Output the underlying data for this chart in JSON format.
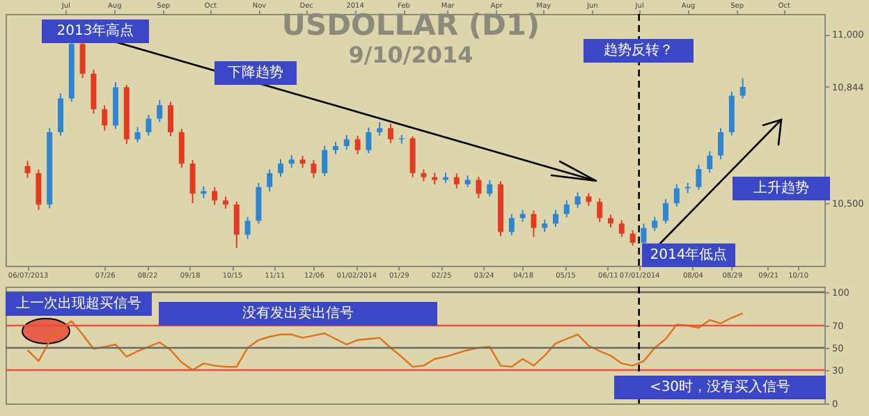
{
  "chart_data": [
    {
      "type": "candlestick",
      "title": "USDOLLAR (D1)",
      "subtitle": "9/10/2014",
      "x": [
        "2013-06-07",
        "2013-06-14",
        "2013-06-21",
        "2013-06-28",
        "2013-07-05",
        "2013-07-12",
        "2013-07-19",
        "2013-07-26",
        "2013-08-02",
        "2013-08-09",
        "2013-08-16",
        "2013-08-23",
        "2013-08-30",
        "2013-09-06",
        "2013-09-13",
        "2013-09-20",
        "2013-09-27",
        "2013-10-04",
        "2013-10-11",
        "2013-10-18",
        "2013-10-25",
        "2013-11-01",
        "2013-11-08",
        "2013-11-15",
        "2013-11-22",
        "2013-11-29",
        "2013-12-06",
        "2013-12-13",
        "2013-12-20",
        "2013-12-27",
        "2014-01-03",
        "2014-01-10",
        "2014-01-17",
        "2014-01-24",
        "2014-01-31",
        "2014-02-07",
        "2014-02-14",
        "2014-02-21",
        "2014-02-28",
        "2014-03-07",
        "2014-03-14",
        "2014-03-21",
        "2014-03-28",
        "2014-04-04",
        "2014-04-11",
        "2014-04-18",
        "2014-04-25",
        "2014-05-02",
        "2014-05-09",
        "2014-05-16",
        "2014-05-23",
        "2014-05-30",
        "2014-06-06",
        "2014-06-13",
        "2014-06-20",
        "2014-06-27",
        "2014-07-04",
        "2014-07-11",
        "2014-07-18",
        "2014-07-25",
        "2014-08-01",
        "2014-08-08",
        "2014-08-15",
        "2014-08-22",
        "2014-08-29",
        "2014-09-05"
      ],
      "ohlc": [
        [
          10610,
          10625,
          10575,
          10589
        ],
        [
          10589,
          10600,
          10480,
          10496
        ],
        [
          10496,
          10722,
          10485,
          10710
        ],
        [
          10710,
          10825,
          10700,
          10810
        ],
        [
          10810,
          10984,
          10800,
          10971
        ],
        [
          10971,
          10980,
          10870,
          10883
        ],
        [
          10883,
          10895,
          10765,
          10778
        ],
        [
          10778,
          10790,
          10715,
          10730
        ],
        [
          10730,
          10858,
          10720,
          10843
        ],
        [
          10843,
          10850,
          10675,
          10689
        ],
        [
          10689,
          10725,
          10680,
          10710
        ],
        [
          10710,
          10762,
          10700,
          10750
        ],
        [
          10750,
          10805,
          10740,
          10790
        ],
        [
          10790,
          10800,
          10698,
          10710
        ],
        [
          10710,
          10720,
          10605,
          10617
        ],
        [
          10617,
          10628,
          10500,
          10528
        ],
        [
          10528,
          10550,
          10515,
          10536
        ],
        [
          10536,
          10548,
          10495,
          10508
        ],
        [
          10508,
          10520,
          10484,
          10496
        ],
        [
          10496,
          10505,
          10367,
          10407
        ],
        [
          10407,
          10460,
          10395,
          10448
        ],
        [
          10448,
          10560,
          10440,
          10548
        ],
        [
          10548,
          10600,
          10535,
          10589
        ],
        [
          10589,
          10630,
          10578,
          10617
        ],
        [
          10617,
          10642,
          10605,
          10629
        ],
        [
          10629,
          10640,
          10605,
          10617
        ],
        [
          10617,
          10628,
          10575,
          10589
        ],
        [
          10589,
          10670,
          10580,
          10657
        ],
        [
          10657,
          10682,
          10645,
          10669
        ],
        [
          10669,
          10702,
          10658,
          10689
        ],
        [
          10689,
          10700,
          10645,
          10657
        ],
        [
          10657,
          10724,
          10648,
          10710
        ],
        [
          10710,
          10740,
          10700,
          10722
        ],
        [
          10722,
          10735,
          10678,
          10689
        ],
        [
          10689,
          10702,
          10676,
          10692
        ],
        [
          10692,
          10698,
          10577,
          10589
        ],
        [
          10589,
          10600,
          10565,
          10577
        ],
        [
          10577,
          10590,
          10556,
          10569
        ],
        [
          10569,
          10590,
          10560,
          10577
        ],
        [
          10577,
          10588,
          10544,
          10556
        ],
        [
          10556,
          10582,
          10548,
          10569
        ],
        [
          10569,
          10578,
          10515,
          10528
        ],
        [
          10528,
          10568,
          10520,
          10556
        ],
        [
          10556,
          10565,
          10402,
          10415
        ],
        [
          10415,
          10468,
          10405,
          10456
        ],
        [
          10456,
          10480,
          10445,
          10468
        ],
        [
          10468,
          10478,
          10400,
          10427
        ],
        [
          10427,
          10452,
          10415,
          10440
        ],
        [
          10440,
          10480,
          10430,
          10468
        ],
        [
          10468,
          10508,
          10458,
          10496
        ],
        [
          10496,
          10532,
          10486,
          10520
        ],
        [
          10520,
          10530,
          10492,
          10504
        ],
        [
          10504,
          10515,
          10444,
          10456
        ],
        [
          10456,
          10466,
          10428,
          10440
        ],
        [
          10440,
          10450,
          10400,
          10410
        ],
        [
          10410,
          10420,
          10375,
          10383
        ],
        [
          10383,
          10440,
          10378,
          10427
        ],
        [
          10427,
          10460,
          10418,
          10448
        ],
        [
          10448,
          10512,
          10440,
          10500
        ],
        [
          10500,
          10556,
          10490,
          10544
        ],
        [
          10544,
          10560,
          10530,
          10548
        ],
        [
          10548,
          10614,
          10540,
          10601
        ],
        [
          10601,
          10654,
          10590,
          10641
        ],
        [
          10641,
          10722,
          10630,
          10710
        ],
        [
          10710,
          10830,
          10700,
          10818
        ],
        [
          10818,
          10870,
          10810,
          10844
        ]
      ],
      "xlim": [
        "2013-05-24",
        "2014-10-27"
      ],
      "xticks": [
        {
          "value": "2013-06-07",
          "label": "06/07/2013"
        },
        {
          "value": "2013-07-26",
          "label": "07/26"
        },
        {
          "value": "2013-08-22",
          "label": "08/22"
        },
        {
          "value": "2013-09-18",
          "label": "09/18"
        },
        {
          "value": "2013-10-15",
          "label": "10/15"
        },
        {
          "value": "2013-11-11",
          "label": "11/11"
        },
        {
          "value": "2013-12-06",
          "label": "12/06"
        },
        {
          "value": "2014-01-02",
          "label": "01/02/2014"
        },
        {
          "value": "2014-01-29",
          "label": "01/29"
        },
        {
          "value": "2014-02-25",
          "label": "02/25"
        },
        {
          "value": "2014-03-24",
          "label": "03/24"
        },
        {
          "value": "2014-04-18",
          "label": "04/18"
        },
        {
          "value": "2014-05-15",
          "label": "05/15"
        },
        {
          "value": "2014-06-11",
          "label": "06/11"
        },
        {
          "value": "2014-07-01",
          "label": "07/01/2014"
        },
        {
          "value": "2014-08-04",
          "label": "08/04"
        },
        {
          "value": "2014-08-29",
          "label": "08/29"
        },
        {
          "value": "2014-09-21",
          "label": "09/21"
        },
        {
          "value": "2014-10-10",
          "label": "10/10"
        }
      ],
      "x2lim": [
        "2013-05-24",
        "2014-10-27"
      ],
      "x2ticks": [
        {
          "value": "2013-07-01",
          "label": "Jul"
        },
        {
          "value": "2013-08-01",
          "label": "Aug"
        },
        {
          "value": "2013-09-01",
          "label": "Sep"
        },
        {
          "value": "2013-10-01",
          "label": "Oct"
        },
        {
          "value": "2013-11-01",
          "label": "Nov"
        },
        {
          "value": "2013-12-01",
          "label": "Dec"
        },
        {
          "value": "2014-01-01",
          "label": "2014"
        },
        {
          "value": "2014-02-01",
          "label": "Feb"
        },
        {
          "value": "2014-03-01",
          "label": "Mar"
        },
        {
          "value": "2014-04-01",
          "label": "Apr"
        },
        {
          "value": "2014-05-01",
          "label": "May"
        },
        {
          "value": "2014-06-01",
          "label": "Jun"
        },
        {
          "value": "2014-07-01",
          "label": "Jul"
        },
        {
          "value": "2014-08-01",
          "label": "Aug"
        },
        {
          "value": "2014-09-01",
          "label": "Sep"
        },
        {
          "value": "2014-10-01",
          "label": "Oct"
        }
      ],
      "ylim": [
        10315,
        11060
      ],
      "yticks": [
        {
          "value": 10500,
          "label": "10,500"
        },
        {
          "value": 10844,
          "label": "10,844"
        },
        {
          "value": 11000,
          "label": "11,000"
        }
      ],
      "ref_lines": [
        {
          "axis": "x",
          "value": "2014-07-01",
          "color": "#000000",
          "line_style": "dashed"
        }
      ],
      "annotations": [
        "2013年高点",
        "下降趋势",
        "趋势反转？",
        "上升趋势",
        "2014年低点"
      ]
    },
    {
      "type": "line",
      "x": [
        "2013-06-07",
        "2013-06-14",
        "2013-06-21",
        "2013-06-28",
        "2013-07-05",
        "2013-07-12",
        "2013-07-19",
        "2013-07-26",
        "2013-08-02",
        "2013-08-09",
        "2013-08-16",
        "2013-08-23",
        "2013-08-30",
        "2013-09-06",
        "2013-09-13",
        "2013-09-20",
        "2013-09-27",
        "2013-10-04",
        "2013-10-11",
        "2013-10-18",
        "2013-10-25",
        "2013-11-01",
        "2013-11-08",
        "2013-11-15",
        "2013-11-22",
        "2013-11-29",
        "2013-12-06",
        "2013-12-13",
        "2013-12-20",
        "2013-12-27",
        "2014-01-03",
        "2014-01-10",
        "2014-01-17",
        "2014-01-24",
        "2014-01-31",
        "2014-02-07",
        "2014-02-14",
        "2014-02-21",
        "2014-02-28",
        "2014-03-07",
        "2014-03-14",
        "2014-03-21",
        "2014-03-28",
        "2014-04-04",
        "2014-04-11",
        "2014-04-18",
        "2014-04-25",
        "2014-05-02",
        "2014-05-09",
        "2014-05-16",
        "2014-05-23",
        "2014-05-30",
        "2014-06-06",
        "2014-06-13",
        "2014-06-20",
        "2014-06-27",
        "2014-07-04",
        "2014-07-11",
        "2014-07-18",
        "2014-07-25",
        "2014-08-01",
        "2014-08-08",
        "2014-08-15",
        "2014-08-22",
        "2014-08-29",
        "2014-09-05"
      ],
      "series": [
        {
          "color": "#e0701a",
          "values": [
            48,
            38,
            56,
            67,
            74,
            62,
            49,
            51,
            53,
            42,
            47,
            51,
            55,
            48,
            37,
            30,
            36,
            34,
            33,
            33,
            50,
            57,
            60,
            62,
            62,
            59,
            61,
            63,
            58,
            53,
            57,
            58,
            59,
            50,
            42,
            33,
            34,
            40,
            42,
            45,
            48,
            50,
            51,
            34,
            33,
            40,
            34,
            43,
            54,
            58,
            62,
            52,
            47,
            43,
            36,
            34,
            38,
            50,
            58,
            71,
            70,
            68,
            75,
            72,
            77,
            81
          ]
        }
      ],
      "xlim": [
        "2013-05-24",
        "2014-10-27"
      ],
      "ylim": [
        0,
        105
      ],
      "yticks": [
        0,
        30,
        50,
        70,
        100
      ],
      "tick_labels": "y",
      "ref_lines": [
        {
          "axis": "y",
          "value": 100,
          "color": "#6a6a60"
        },
        {
          "axis": "y",
          "value": 70,
          "color": "#e8503a"
        },
        {
          "axis": "y",
          "value": 50,
          "color": "#6a6a60"
        },
        {
          "axis": "y",
          "value": 30,
          "color": "#e8503a"
        },
        {
          "axis": "x",
          "value": "2014-07-01",
          "color": "#000000",
          "line_style": "dashed"
        }
      ],
      "annotations": [
        "上一次出现超买信号",
        "没有发出卖出信号",
        "<30时，没有买入信号"
      ]
    }
  ]
}
